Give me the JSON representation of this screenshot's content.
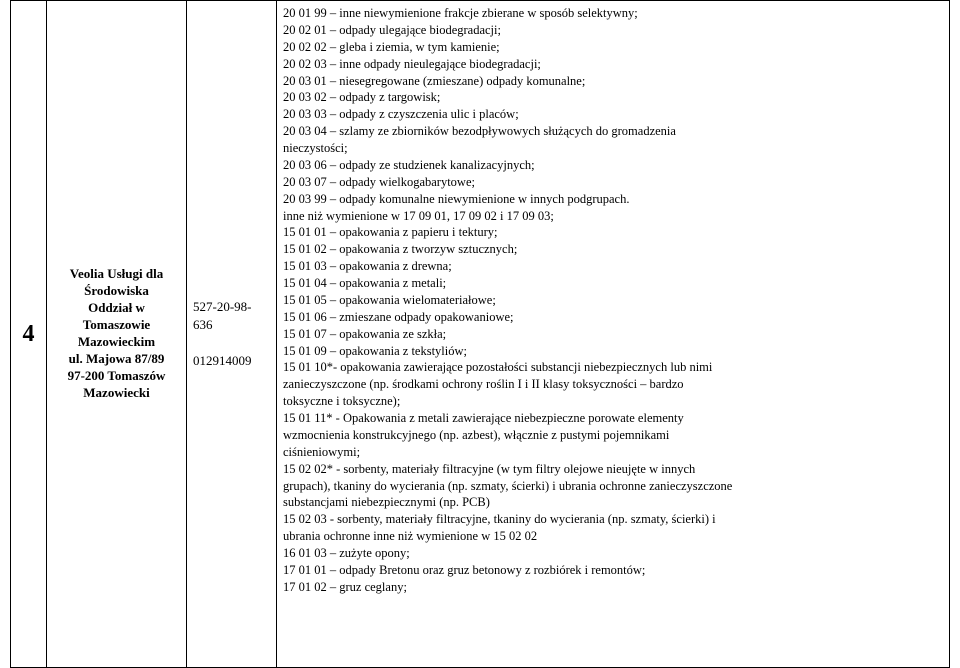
{
  "row_number": "4",
  "entity": {
    "line1": "Veolia Usługi dla",
    "line2": "Środowiska",
    "line3": "Oddział w",
    "line4": "Tomaszowie",
    "line5": "Mazowieckim",
    "line6": "ul. Majowa 87/89",
    "line7": "97-200 Tomaszów",
    "line8": "Mazowiecki"
  },
  "codes": {
    "nip1": "527-20-98-",
    "nip2": "636",
    "regon": "012914009"
  },
  "desc": {
    "l01": "20 01 99 – inne niewymienione frakcje zbierane w sposób selektywny;",
    "l02": "20 02 01 – odpady ulegające biodegradacji;",
    "l03": "20 02 02 – gleba i ziemia, w tym kamienie;",
    "l04": "20 02 03 – inne odpady nieulegające biodegradacji;",
    "l05": "20 03 01 – niesegregowane (zmieszane) odpady komunalne;",
    "l06": "20 03 02 – odpady z targowisk;",
    "l07": "20 03 03 – odpady z czyszczenia ulic i placów;",
    "l08": "20 03 04 – szlamy ze zbiorników bezodpływowych służących do gromadzenia",
    "l09": "nieczystości;",
    "l10": "20 03 06 – odpady ze studzienek kanalizacyjnych;",
    "l11": "20 03 07 – odpady wielkogabarytowe;",
    "l12": "20 03 99 – odpady komunalne niewymienione w innych podgrupach.",
    "l13": "inne niż wymienione w 17 09 01, 17 09 02 i 17 09 03;",
    "l14": "15 01 01 – opakowania z papieru i tektury;",
    "l15": "15 01 02 – opakowania z tworzyw sztucznych;",
    "l16": "15 01 03 – opakowania z drewna;",
    "l17": "15 01 04 – opakowania z metali;",
    "l18": "15 01 05 – opakowania wielomateriałowe;",
    "l19": "15 01 06 – zmieszane odpady opakowaniowe;",
    "l20": "15 01 07 – opakowania ze szkła;",
    "l21": "15 01 09 – opakowania z tekstyliów;",
    "l22": "15 01 10*- opakowania zawierające pozostałości substancji niebezpiecznych lub nimi",
    "l23": "zanieczyszczone (np. środkami ochrony roślin I i II klasy toksyczności – bardzo",
    "l24": "toksyczne i toksyczne);",
    "l25": "15 01 11* - Opakowania z metali zawierające niebezpieczne porowate elementy",
    "l26": "wzmocnienia konstrukcyjnego (np. azbest), włącznie z pustymi pojemnikami",
    "l27": "ciśnieniowymi;",
    "l28": "15 02 02* - sorbenty, materiały filtracyjne (w tym filtry olejowe nieujęte w innych",
    "l29": "grupach), tkaniny do wycierania (np. szmaty, ścierki) i ubrania ochronne zanieczyszczone",
    "l30": "substancjami niebezpiecznymi (np. PCB)",
    "l31": "15 02 03 - sorbenty, materiały filtracyjne, tkaniny do wycierania (np. szmaty, ścierki) i",
    "l32": "ubrania ochronne inne niż wymienione w 15 02 02",
    "l33": "16 01 03 – zużyte opony;",
    "l34": "17 01 01 – odpady Bretonu oraz gruz betonowy z rozbiórek i remontów;",
    "l35": "17 01 02 – gruz ceglany;"
  }
}
